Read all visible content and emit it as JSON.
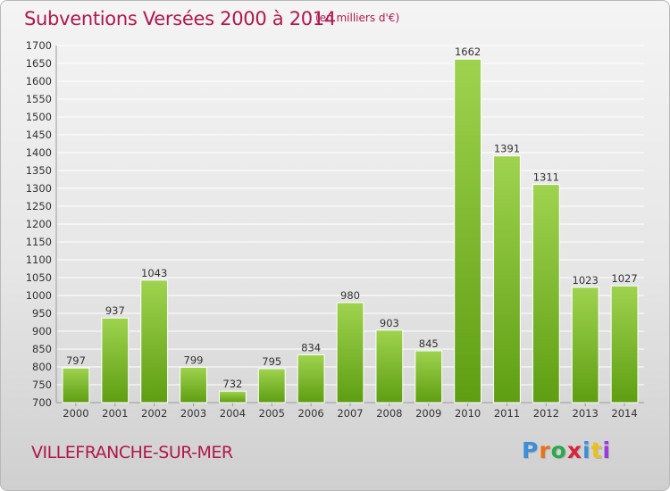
{
  "header": {
    "title": "Subventions Versées 2000 à 2014",
    "unit_note": "(en milliers d'€)"
  },
  "footer": {
    "place": "VILLEFRANCHE-SUR-MER",
    "logo_text": "Proxiti"
  },
  "colors": {
    "accent": "#b0184a",
    "bar_top": "#9fd34f",
    "bar_bottom": "#5e9e12",
    "grid": "#ffffff"
  },
  "chart_data": {
    "type": "bar",
    "title": "Subventions Versées 2000 à 2014",
    "subtitle": "(en milliers d'€)",
    "xlabel": "",
    "ylabel": "",
    "categories": [
      "2000",
      "2001",
      "2002",
      "2003",
      "2004",
      "2005",
      "2006",
      "2007",
      "2008",
      "2009",
      "2010",
      "2011",
      "2012",
      "2013",
      "2014"
    ],
    "values": [
      797,
      937,
      1043,
      799,
      732,
      795,
      834,
      980,
      903,
      845,
      1662,
      1391,
      1311,
      1023,
      1027
    ],
    "ylim": [
      700,
      1700
    ],
    "ytick_step": 50,
    "grid": true,
    "legend": "none",
    "data_labels": true
  }
}
